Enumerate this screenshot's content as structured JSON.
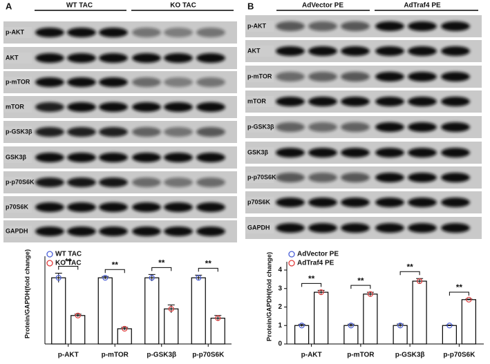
{
  "panels": [
    {
      "label": "A",
      "groups": [
        "WT TAC",
        "KO TAC"
      ],
      "rows": [
        "p-AKT",
        "AKT",
        "p-mTOR",
        "mTOR",
        "p-GSK3β",
        "GSK3β",
        "p-p70S6K",
        "p70S6K",
        "GAPDH"
      ]
    },
    {
      "label": "B",
      "groups": [
        "AdVector PE",
        "AdTraf4 PE"
      ],
      "rows": [
        "p-AKT",
        "AKT",
        "p-mTOR",
        "mTOR",
        "p-GSK3β",
        "GSK3β",
        "p-p70S6K",
        "p70S6K",
        "GAPDH"
      ]
    }
  ],
  "chart_data": [
    {
      "type": "bar",
      "y_label": "Protein/GAPDH(fold change)",
      "categories": [
        "p-AKT",
        "p-mTOR",
        "p-GSK3β",
        "p-p70S6K"
      ],
      "series": [
        {
          "name": "WT TAC",
          "color": "#4a5fd8",
          "values": [
            1.0,
            1.0,
            1.0,
            1.0
          ],
          "errors": [
            0.07,
            0.02,
            0.05,
            0.04
          ]
        },
        {
          "name": "KO TAC",
          "color": "#e03a3a",
          "values": [
            0.43,
            0.23,
            0.53,
            0.39
          ],
          "errors": [
            0.02,
            0.02,
            0.06,
            0.04
          ]
        }
      ],
      "significance": [
        "**",
        "**",
        "**",
        "**"
      ],
      "ylim": [
        0,
        1.2
      ]
    },
    {
      "type": "bar",
      "y_label": "Protein/GAPDH(fold change)",
      "categories": [
        "p-AKT",
        "p-mTOR",
        "p-GSK3β",
        "p-p70S6K"
      ],
      "series": [
        {
          "name": "AdVector PE",
          "color": "#4a5fd8",
          "values": [
            1.0,
            1.0,
            1.0,
            1.0
          ],
          "errors": [
            0.06,
            0.07,
            0.08,
            0.03
          ]
        },
        {
          "name": "AdTraf4 PE",
          "color": "#e03a3a",
          "values": [
            2.8,
            2.7,
            3.4,
            2.4
          ],
          "errors": [
            0.1,
            0.1,
            0.14,
            0.03
          ]
        }
      ],
      "significance": [
        "**",
        "**",
        "**",
        "**"
      ],
      "ylim": [
        0,
        4
      ],
      "yticks": [
        0,
        1,
        2,
        3,
        4
      ]
    }
  ]
}
